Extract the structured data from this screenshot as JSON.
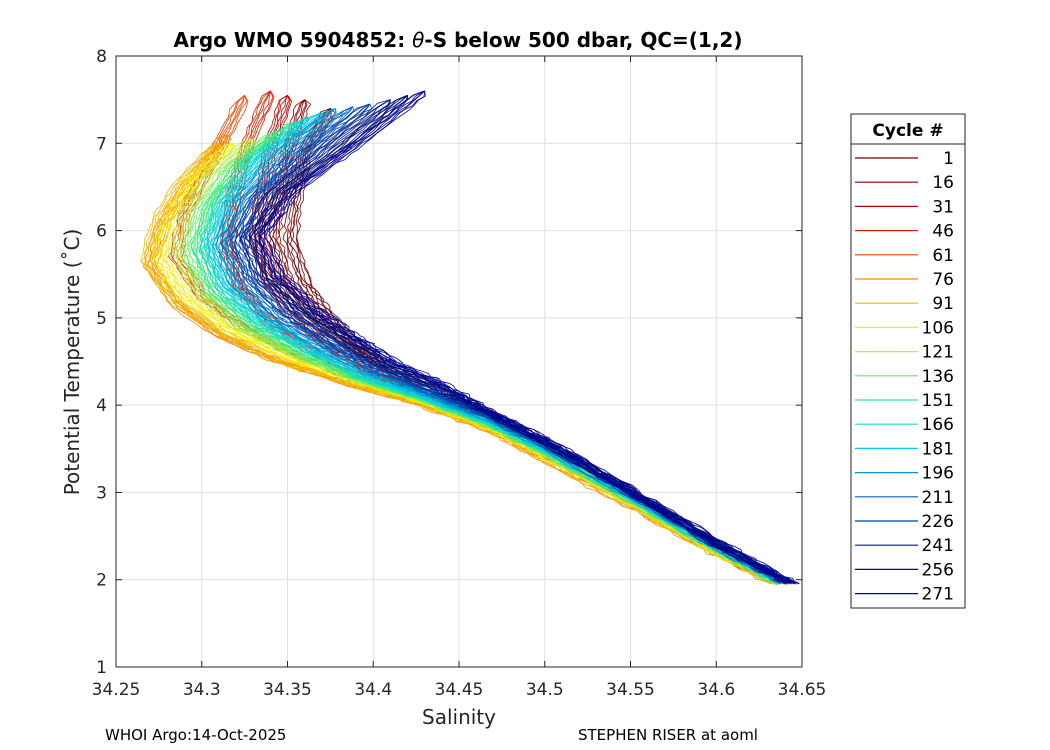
{
  "chart_data": {
    "type": "line",
    "title_prefix": "Argo WMO 5904852: ",
    "title_theta": "θ",
    "title_suffix": "-S below 500 dbar,  QC=(1,2)",
    "xlabel": "Salinity",
    "ylabel": "Potential Temperature (˚C)",
    "xlim": [
      34.25,
      34.65
    ],
    "ylim": [
      1,
      8
    ],
    "xticks": [
      "34.25",
      "34.3",
      "34.35",
      "34.4",
      "34.45",
      "34.5",
      "34.55",
      "34.6",
      "34.65"
    ],
    "yticks": [
      "1",
      "2",
      "3",
      "4",
      "5",
      "6",
      "7",
      "8"
    ],
    "grid": true,
    "legend": {
      "title": "Cycle #",
      "placement": "outside-right",
      "entries": [
        {
          "label": "1",
          "color": "#700000"
        },
        {
          "label": "16",
          "color": "#8e0000"
        },
        {
          "label": "31",
          "color": "#b80000"
        },
        {
          "label": "46",
          "color": "#d42000"
        },
        {
          "label": "61",
          "color": "#ef4500"
        },
        {
          "label": "76",
          "color": "#f08c00"
        },
        {
          "label": "91",
          "color": "#f4b800"
        },
        {
          "label": "106",
          "color": "#f5f000"
        },
        {
          "label": "121",
          "color": "#b4f03c"
        },
        {
          "label": "136",
          "color": "#64ee64"
        },
        {
          "label": "151",
          "color": "#28e68c"
        },
        {
          "label": "166",
          "color": "#14dcc8"
        },
        {
          "label": "181",
          "color": "#00c8ee"
        },
        {
          "label": "196",
          "color": "#0096d2"
        },
        {
          "label": "211",
          "color": "#0064c8"
        },
        {
          "label": "226",
          "color": "#003ca8"
        },
        {
          "label": "241",
          "color": "#001e8c"
        },
        {
          "label": "256",
          "color": "#000a6e"
        },
        {
          "label": "271",
          "color": "#000096"
        }
      ]
    },
    "series": [
      {
        "name": "1",
        "x": [
          34.64,
          34.6,
          34.55,
          34.5,
          34.47,
          34.43,
          34.41,
          34.39,
          34.375,
          34.36,
          34.352,
          34.355,
          34.36,
          34.375
        ],
        "y": [
          1.96,
          2.4,
          3.0,
          3.55,
          3.85,
          4.15,
          4.4,
          4.7,
          5.0,
          5.4,
          5.9,
          6.4,
          6.9,
          7.4
        ]
      },
      {
        "name": "16",
        "x": [
          34.64,
          34.6,
          34.55,
          34.5,
          34.47,
          34.43,
          34.405,
          34.385,
          34.365,
          34.35,
          34.342,
          34.345,
          34.35,
          34.36
        ],
        "y": [
          1.96,
          2.38,
          2.98,
          3.52,
          3.83,
          4.12,
          4.38,
          4.68,
          5.0,
          5.4,
          5.9,
          6.4,
          6.9,
          7.5
        ]
      },
      {
        "name": "31",
        "x": [
          34.638,
          34.6,
          34.55,
          34.5,
          34.47,
          34.43,
          34.4,
          34.375,
          34.355,
          34.34,
          34.332,
          34.335,
          34.34,
          34.35
        ],
        "y": [
          1.96,
          2.37,
          2.96,
          3.5,
          3.8,
          4.1,
          4.35,
          4.65,
          4.98,
          5.4,
          5.9,
          6.4,
          6.95,
          7.55
        ]
      },
      {
        "name": "46",
        "x": [
          34.637,
          34.6,
          34.55,
          34.5,
          34.47,
          34.43,
          34.395,
          34.365,
          34.34,
          34.322,
          34.315,
          34.318,
          34.325,
          34.34
        ],
        "y": [
          1.96,
          2.36,
          2.94,
          3.48,
          3.78,
          4.08,
          4.32,
          4.6,
          4.95,
          5.35,
          5.85,
          6.35,
          6.9,
          7.6
        ]
      },
      {
        "name": "61",
        "x": [
          34.636,
          34.6,
          34.55,
          34.5,
          34.47,
          34.43,
          34.39,
          34.355,
          34.325,
          34.3,
          34.285,
          34.29,
          34.305,
          34.325
        ],
        "y": [
          1.96,
          2.34,
          2.91,
          3.45,
          3.75,
          4.05,
          4.28,
          4.55,
          4.88,
          5.25,
          5.7,
          6.2,
          6.75,
          7.55
        ]
      },
      {
        "name": "76",
        "x": [
          34.635,
          34.6,
          34.55,
          34.5,
          34.47,
          34.43,
          34.385,
          34.345,
          34.31,
          34.285,
          34.27,
          34.278,
          34.295,
          34.315
        ],
        "y": [
          1.95,
          2.3,
          2.85,
          3.38,
          3.7,
          4.0,
          4.24,
          4.5,
          4.8,
          5.15,
          5.6,
          6.1,
          6.6,
          7.1
        ]
      },
      {
        "name": "91",
        "x": [
          34.636,
          34.6,
          34.55,
          34.5,
          34.47,
          34.43,
          34.385,
          34.345,
          34.31,
          34.285,
          34.268,
          34.275,
          34.29,
          34.31
        ],
        "y": [
          1.95,
          2.31,
          2.87,
          3.4,
          3.71,
          4.01,
          4.25,
          4.52,
          4.85,
          5.2,
          5.65,
          6.15,
          6.6,
          7.0
        ]
      },
      {
        "name": "106",
        "x": [
          34.637,
          34.6,
          34.55,
          34.5,
          34.47,
          34.43,
          34.39,
          34.35,
          34.315,
          34.29,
          34.275,
          34.282,
          34.298,
          34.318
        ],
        "y": [
          1.96,
          2.33,
          2.89,
          3.43,
          3.73,
          4.03,
          4.27,
          4.55,
          4.88,
          5.25,
          5.7,
          6.2,
          6.65,
          7.0
        ]
      },
      {
        "name": "121",
        "x": [
          34.638,
          34.6,
          34.55,
          34.5,
          34.47,
          34.43,
          34.39,
          34.355,
          34.32,
          34.298,
          34.285,
          34.292,
          34.308,
          34.33
        ],
        "y": [
          1.96,
          2.34,
          2.91,
          3.45,
          3.75,
          4.05,
          4.28,
          4.57,
          4.9,
          5.3,
          5.75,
          6.25,
          6.7,
          7.05
        ]
      },
      {
        "name": "136",
        "x": [
          34.638,
          34.6,
          34.55,
          34.5,
          34.47,
          34.43,
          34.39,
          34.355,
          34.325,
          34.303,
          34.292,
          34.3,
          34.318,
          34.345
        ],
        "y": [
          1.96,
          2.35,
          2.92,
          3.46,
          3.76,
          4.06,
          4.3,
          4.58,
          4.92,
          5.3,
          5.75,
          6.25,
          6.75,
          7.15
        ]
      },
      {
        "name": "151",
        "x": [
          34.639,
          34.6,
          34.55,
          34.5,
          34.47,
          34.43,
          34.392,
          34.36,
          34.33,
          34.308,
          34.298,
          34.305,
          34.325,
          34.355
        ],
        "y": [
          1.96,
          2.36,
          2.93,
          3.47,
          3.77,
          4.07,
          4.31,
          4.6,
          4.93,
          5.32,
          5.78,
          6.28,
          6.8,
          7.25
        ]
      },
      {
        "name": "166",
        "x": [
          34.639,
          34.6,
          34.55,
          34.5,
          34.47,
          34.43,
          34.393,
          34.362,
          34.333,
          34.312,
          34.302,
          34.31,
          34.33,
          34.362
        ],
        "y": [
          1.96,
          2.37,
          2.95,
          3.49,
          3.79,
          4.09,
          4.33,
          4.62,
          4.95,
          5.33,
          5.8,
          6.3,
          6.82,
          7.3
        ]
      },
      {
        "name": "181",
        "x": [
          34.64,
          34.6,
          34.55,
          34.5,
          34.47,
          34.43,
          34.395,
          34.365,
          34.337,
          34.316,
          34.306,
          34.315,
          34.337,
          34.37
        ],
        "y": [
          1.96,
          2.38,
          2.96,
          3.5,
          3.8,
          4.1,
          4.35,
          4.64,
          4.97,
          5.35,
          5.82,
          6.32,
          6.85,
          7.35
        ]
      },
      {
        "name": "196",
        "x": [
          34.64,
          34.6,
          34.55,
          34.5,
          34.47,
          34.432,
          34.398,
          34.368,
          34.34,
          34.32,
          34.31,
          34.32,
          34.345,
          34.378
        ],
        "y": [
          1.96,
          2.39,
          2.97,
          3.52,
          3.82,
          4.12,
          4.37,
          4.66,
          4.99,
          5.37,
          5.84,
          6.34,
          6.88,
          7.4
        ]
      },
      {
        "name": "211",
        "x": [
          34.641,
          34.6,
          34.55,
          34.5,
          34.47,
          34.434,
          34.4,
          34.372,
          34.345,
          34.325,
          34.315,
          34.327,
          34.355,
          34.388
        ],
        "y": [
          1.96,
          2.4,
          2.99,
          3.54,
          3.84,
          4.14,
          4.4,
          4.7,
          5.02,
          5.4,
          5.86,
          6.36,
          6.9,
          7.42
        ]
      },
      {
        "name": "226",
        "x": [
          34.642,
          34.6,
          34.55,
          34.5,
          34.47,
          34.436,
          34.403,
          34.376,
          34.35,
          34.33,
          34.32,
          34.333,
          34.365,
          34.398
        ],
        "y": [
          1.96,
          2.41,
          3.0,
          3.56,
          3.86,
          4.16,
          4.42,
          4.72,
          5.05,
          5.43,
          5.89,
          6.4,
          6.95,
          7.45
        ]
      },
      {
        "name": "241",
        "x": [
          34.643,
          34.6,
          34.55,
          34.5,
          34.47,
          34.438,
          34.406,
          34.38,
          34.355,
          34.335,
          34.325,
          34.34,
          34.375,
          34.41
        ],
        "y": [
          1.96,
          2.42,
          3.01,
          3.58,
          3.88,
          4.18,
          4.45,
          4.75,
          5.08,
          5.45,
          5.91,
          6.42,
          6.98,
          7.5
        ]
      },
      {
        "name": "256",
        "x": [
          34.643,
          34.6,
          34.55,
          34.5,
          34.47,
          34.44,
          34.41,
          34.385,
          34.36,
          34.34,
          34.33,
          34.348,
          34.385,
          34.42
        ],
        "y": [
          1.96,
          2.42,
          3.02,
          3.59,
          3.89,
          4.2,
          4.47,
          4.78,
          5.1,
          5.47,
          5.93,
          6.45,
          7.0,
          7.55
        ]
      },
      {
        "name": "271",
        "x": [
          34.644,
          34.6,
          34.55,
          34.5,
          34.47,
          34.442,
          34.412,
          34.388,
          34.365,
          34.345,
          34.335,
          34.355,
          34.395,
          34.43
        ],
        "y": [
          1.96,
          2.43,
          3.03,
          3.6,
          3.9,
          4.22,
          4.5,
          4.8,
          5.12,
          5.5,
          5.95,
          6.48,
          7.05,
          7.6
        ]
      }
    ]
  },
  "footer": {
    "left": "WHOI Argo:14-Oct-2025",
    "right": "STEPHEN RISER at aoml"
  }
}
